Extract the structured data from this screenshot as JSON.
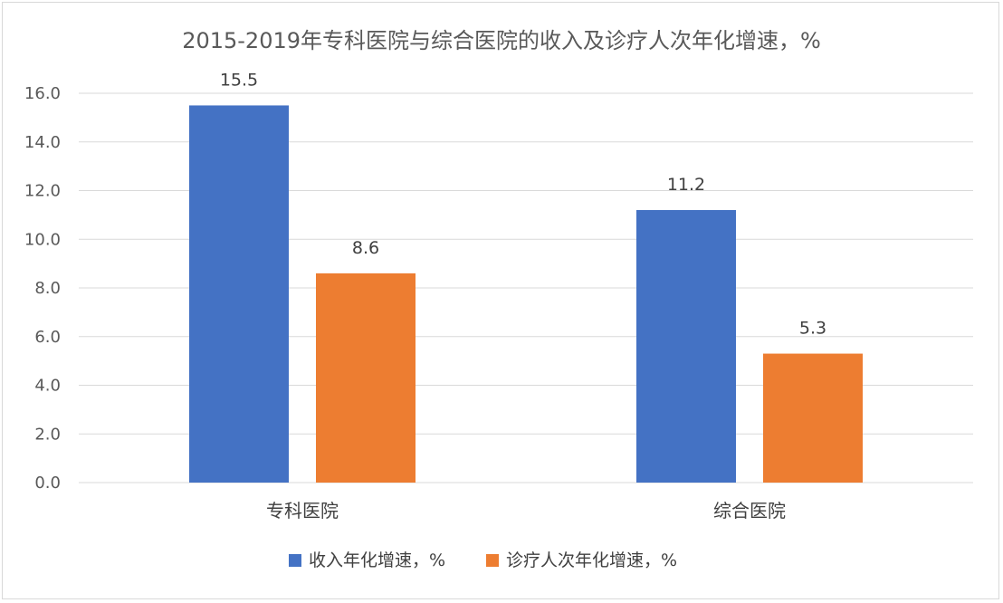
{
  "chart_data": {
    "type": "bar",
    "title": "2015-2019年专科医院与综合医院的收入及诊疗人次年化增速，%",
    "categories": [
      "专科医院",
      "综合医院"
    ],
    "series": [
      {
        "name": "收入年化增速，%",
        "values": [
          15.5,
          11.2
        ],
        "color": "#4472C4"
      },
      {
        "name": "诊疗人次年化增速，%",
        "values": [
          8.6,
          5.3
        ],
        "color": "#ED7D31"
      }
    ],
    "data_labels": [
      [
        "15.5",
        "11.2"
      ],
      [
        "8.6",
        "5.3"
      ]
    ],
    "yticks": [
      "0.0",
      "2.0",
      "4.0",
      "6.0",
      "8.0",
      "10.0",
      "12.0",
      "14.0",
      "16.0"
    ],
    "ylim": [
      0,
      16
    ],
    "xlabel": "",
    "ylabel": "",
    "grid": true,
    "legend_position": "bottom"
  }
}
